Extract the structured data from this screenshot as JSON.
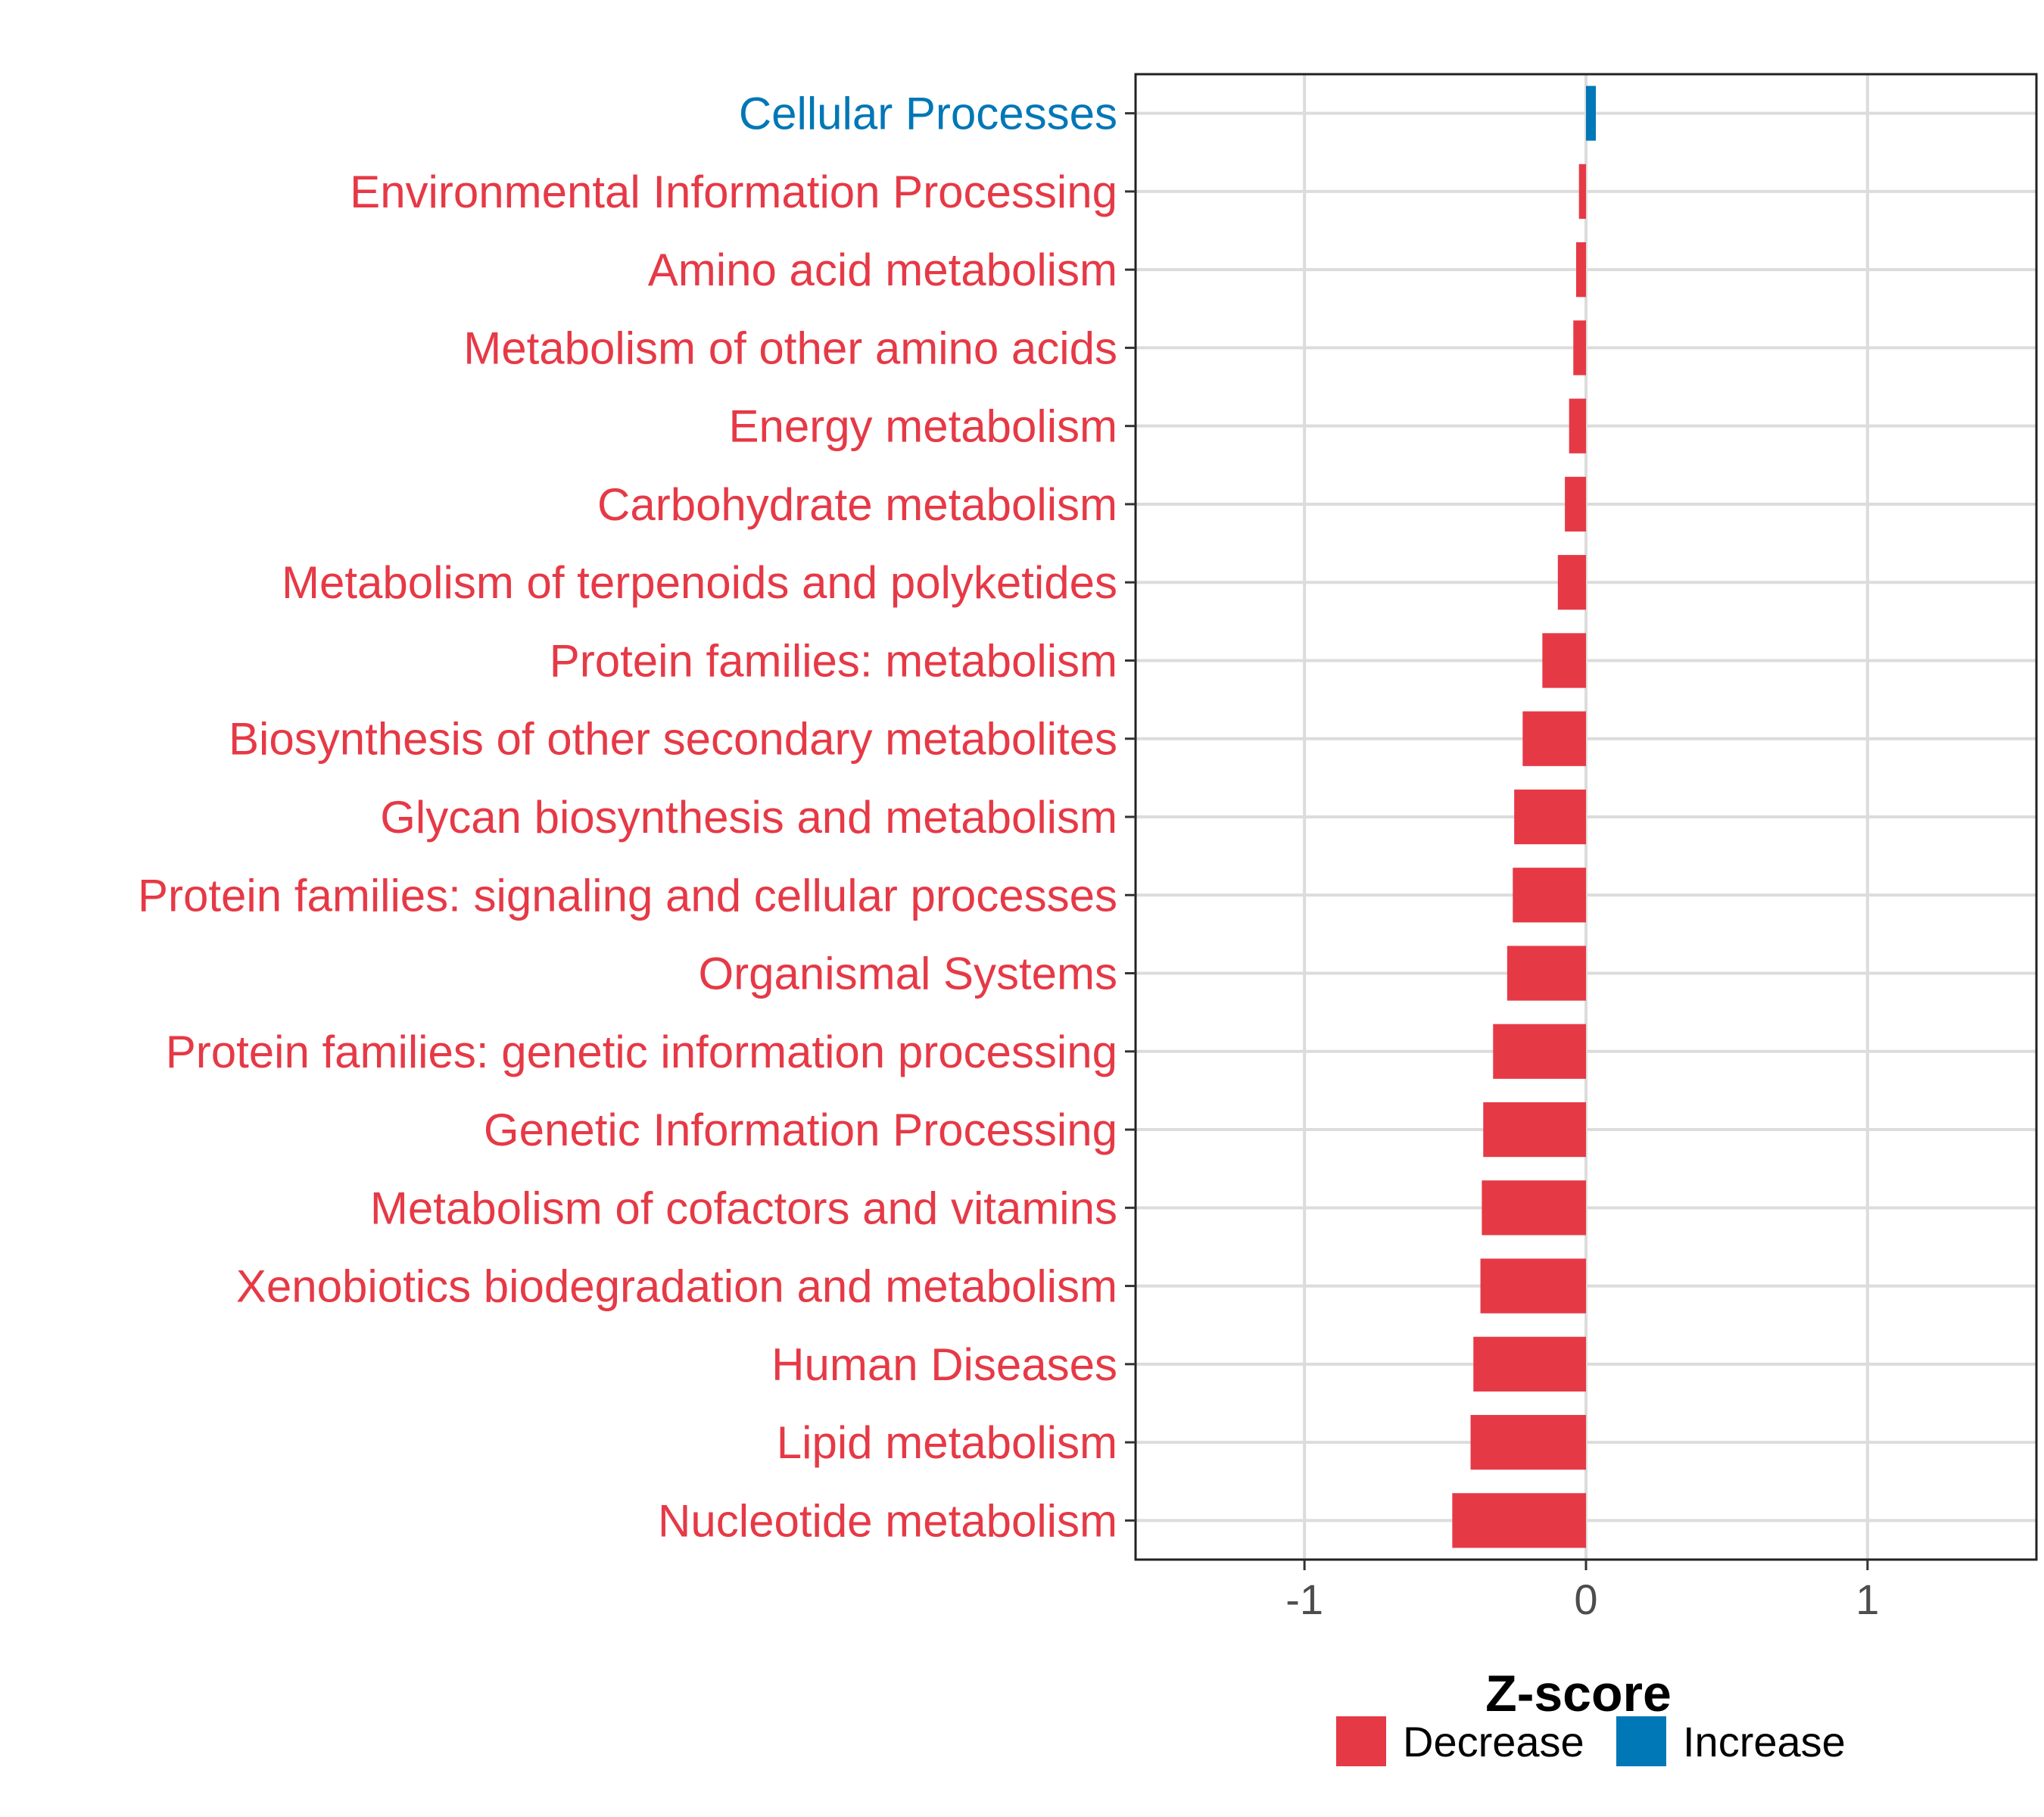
{
  "chart_data": {
    "type": "bar",
    "orientation": "horizontal",
    "xlabel": "Z-score",
    "xlim": [
      -1.6,
      1.6
    ],
    "xticks": [
      -1,
      0,
      1
    ],
    "xtick_labels": [
      "-1",
      "0",
      "1"
    ],
    "grid": true,
    "legend_position": "bottom",
    "legend": [
      {
        "label": "Decrease",
        "color": "#e63946"
      },
      {
        "label": "Increase",
        "color": "#0077b6"
      }
    ],
    "categories": [
      "Cellular Processes",
      "Environmental Information Processing",
      "Amino acid metabolism",
      "Metabolism of other amino acids",
      "Energy metabolism",
      "Carbohydrate metabolism",
      "Metabolism of terpenoids and polyketides",
      "Protein families: metabolism",
      "Biosynthesis of other secondary metabolites",
      "Glycan biosynthesis and metabolism",
      "Protein families: signaling and cellular processes",
      "Organismal Systems",
      "Protein families: genetic information processing",
      "Genetic Information Processing",
      "Metabolism of cofactors and vitamins",
      "Xenobiotics biodegradation and metabolism",
      "Human Diseases",
      "Lipid metabolism",
      "Nucleotide metabolism"
    ],
    "values": [
      0.035,
      -0.025,
      -0.035,
      -0.045,
      -0.06,
      -0.075,
      -0.1,
      -0.155,
      -0.225,
      -0.255,
      -0.26,
      -0.28,
      -0.33,
      -0.365,
      -0.37,
      -0.375,
      -0.4,
      -0.41,
      -0.475
    ],
    "directions": [
      "Increase",
      "Decrease",
      "Decrease",
      "Decrease",
      "Decrease",
      "Decrease",
      "Decrease",
      "Decrease",
      "Decrease",
      "Decrease",
      "Decrease",
      "Decrease",
      "Decrease",
      "Decrease",
      "Decrease",
      "Decrease",
      "Decrease",
      "Decrease",
      "Decrease"
    ]
  }
}
